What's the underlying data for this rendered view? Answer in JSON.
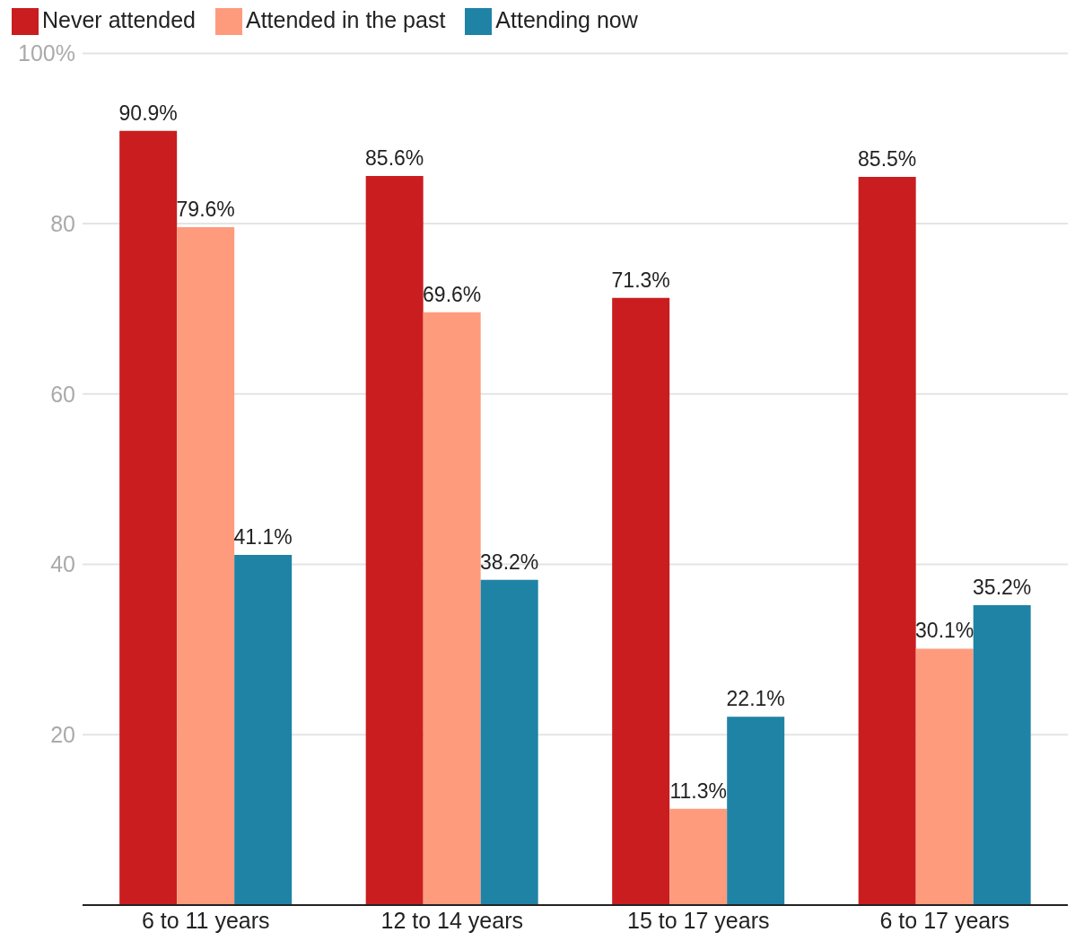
{
  "chart_data": {
    "type": "bar",
    "categories": [
      "6 to 11 years",
      "12 to 14 years",
      "15 to 17 years",
      "6 to 17 years"
    ],
    "series": [
      {
        "name": "Never attended",
        "color": "#c91d1f",
        "values": [
          90.9,
          85.6,
          71.3,
          85.5
        ],
        "value_labels": [
          "90.9%",
          "85.6%",
          "71.3%",
          "85.5%"
        ]
      },
      {
        "name": "Attended in the past",
        "color": "#ff9b7d",
        "values": [
          79.6,
          69.6,
          11.3,
          30.1
        ],
        "value_labels": [
          "79.6%",
          "69.6%",
          "11.3%",
          "30.1%"
        ]
      },
      {
        "name": "Attending now",
        "color": "#1f83a5",
        "values": [
          41.1,
          38.2,
          22.1,
          35.2
        ],
        "value_labels": [
          "41.1%",
          "38.2%",
          "22.1%",
          "35.2%"
        ]
      }
    ],
    "ylim": [
      0,
      100
    ],
    "yticks": [
      {
        "value": 0,
        "label": null
      },
      20,
      40,
      60,
      80,
      {
        "value": 100,
        "label": "100%"
      }
    ],
    "grid": "y",
    "legend": "top left"
  }
}
